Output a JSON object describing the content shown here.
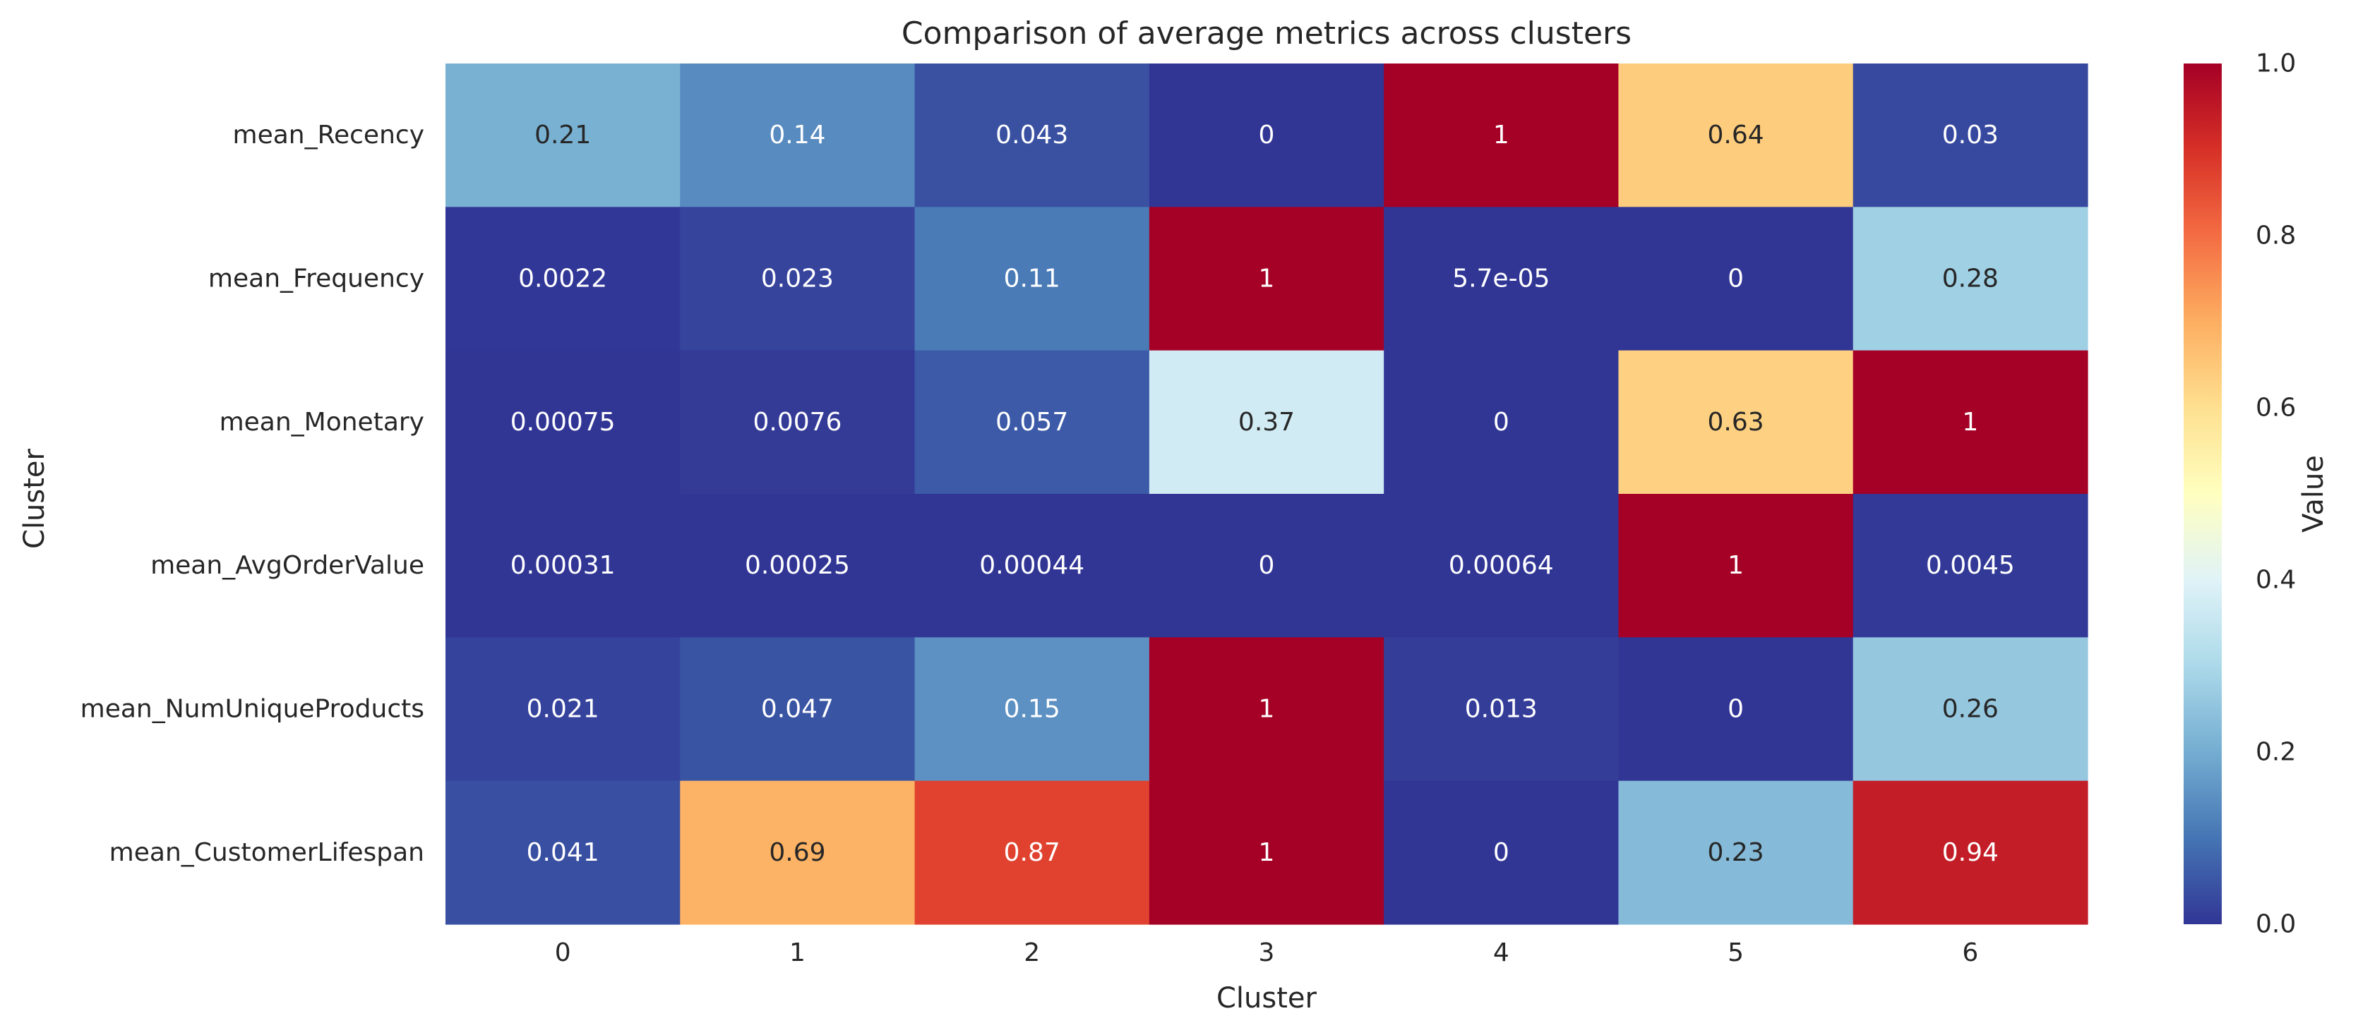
{
  "chart_data": {
    "type": "heatmap",
    "title": "Comparison of average metrics across clusters",
    "xlabel": "Cluster",
    "ylabel": "Cluster",
    "x_categories": [
      "0",
      "1",
      "2",
      "3",
      "4",
      "5",
      "6"
    ],
    "y_categories": [
      "mean_Recency",
      "mean_Frequency",
      "mean_Monetary",
      "mean_AvgOrderValue",
      "mean_NumUniqueProducts",
      "mean_CustomerLifespan"
    ],
    "values": [
      [
        0.21,
        0.14,
        0.043,
        0,
        1,
        0.64,
        0.03
      ],
      [
        0.0022,
        0.023,
        0.11,
        1,
        5.7e-05,
        0,
        0.28
      ],
      [
        0.00075,
        0.0076,
        0.057,
        0.37,
        0,
        0.63,
        1
      ],
      [
        0.00031,
        0.00025,
        0.00044,
        0,
        0.00064,
        1,
        0.0045
      ],
      [
        0.021,
        0.047,
        0.15,
        1,
        0.013,
        0,
        0.26
      ],
      [
        0.041,
        0.69,
        0.87,
        1,
        0,
        0.23,
        0.94
      ]
    ],
    "annotations": [
      [
        "0.21",
        "0.14",
        "0.043",
        "0",
        "1",
        "0.64",
        "0.03"
      ],
      [
        "0.0022",
        "0.023",
        "0.11",
        "1",
        "5.7e-05",
        "0",
        "0.28"
      ],
      [
        "0.00075",
        "0.0076",
        "0.057",
        "0.37",
        "0",
        "0.63",
        "1"
      ],
      [
        "0.00031",
        "0.00025",
        "0.00044",
        "0",
        "0.00064",
        "1",
        "0.0045"
      ],
      [
        "0.021",
        "0.047",
        "0.15",
        "1",
        "0.013",
        "0",
        "0.26"
      ],
      [
        "0.041",
        "0.69",
        "0.87",
        "1",
        "0",
        "0.23",
        "0.94"
      ]
    ],
    "colormap": "RdYlBu_r",
    "vmin": 0,
    "vmax": 1,
    "colorbar": {
      "label": "Value",
      "ticks": [
        "0.0",
        "0.2",
        "0.4",
        "0.6",
        "0.8",
        "1.0"
      ]
    }
  }
}
